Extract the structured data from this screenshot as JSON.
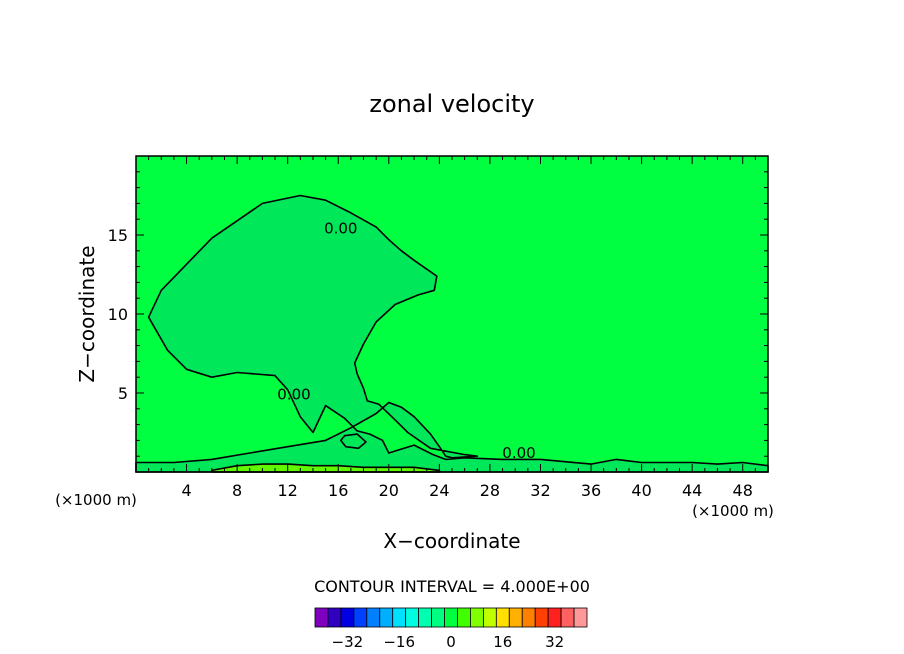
{
  "chart_data": {
    "type": "contour",
    "title": "zonal velocity",
    "xlabel": "X−coordinate",
    "ylabel": "Z−coordinate",
    "x_unit": "(×1000 m)",
    "xlim": [
      0,
      50
    ],
    "ylim": [
      0,
      20
    ],
    "x_ticks": [
      4,
      8,
      12,
      16,
      20,
      24,
      28,
      32,
      36,
      40,
      44,
      48
    ],
    "y_ticks": [
      5,
      10,
      15
    ],
    "background_level": 0,
    "contour_label": "0.00",
    "contour_interval_text": "CONTOUR INTERVAL = 4.000E+00",
    "colorbar": {
      "ticks": [
        "−32",
        "−16",
        "0",
        "16",
        "32"
      ],
      "tick_values": [
        -32,
        -16,
        0,
        16,
        32
      ],
      "min": -40,
      "max": 40,
      "step": 4,
      "colors": [
        "#8000c0",
        "#3000c0",
        "#0000e0",
        "#0040ff",
        "#0080ff",
        "#00b0ff",
        "#00e0ff",
        "#00ffe0",
        "#00ffb0",
        "#00ff80",
        "#00ff40",
        "#40ff00",
        "#80ff00",
        "#c0ff00",
        "#ffe000",
        "#ffb000",
        "#ff8000",
        "#ff4000",
        "#ff2020",
        "#ff6060",
        "#ff9898"
      ]
    },
    "regions": [
      {
        "name": "negative velocity (-4 to 0)",
        "level_color": "#00e85a",
        "value_range": [
          -4,
          0
        ],
        "outline": [
          [
            13,
            17.5
          ],
          [
            10,
            17
          ],
          [
            6,
            14.8
          ],
          [
            2,
            11.5
          ],
          [
            1,
            9.8
          ],
          [
            2.5,
            7.7
          ],
          [
            4,
            6.5
          ],
          [
            6,
            6
          ],
          [
            8,
            6.3
          ],
          [
            11,
            6.1
          ],
          [
            12,
            5.2
          ],
          [
            13,
            3.5
          ],
          [
            14,
            2.5
          ],
          [
            15,
            4.2
          ],
          [
            16.5,
            3.4
          ],
          [
            17.5,
            2.6
          ],
          [
            18.5,
            2.4
          ],
          [
            19.5,
            2
          ],
          [
            20,
            1.2
          ],
          [
            22,
            1.7
          ],
          [
            23.5,
            1.1
          ],
          [
            24.5,
            0.8
          ],
          [
            26,
            0.9
          ],
          [
            29,
            0.8
          ],
          [
            32,
            0.8
          ],
          [
            36,
            0.5
          ],
          [
            38,
            0.8
          ],
          [
            40,
            0.6
          ],
          [
            44,
            0.6
          ],
          [
            46,
            0.5
          ],
          [
            48,
            0.6
          ],
          [
            50,
            0.4
          ],
          [
            50,
            0
          ],
          [
            0,
            0
          ],
          [
            0,
            0.6
          ],
          [
            3,
            0.6
          ],
          [
            6,
            0.8
          ],
          [
            9,
            1.2
          ],
          [
            12,
            1.6
          ],
          [
            15,
            2
          ],
          [
            17,
            2.8
          ],
          [
            19,
            3.7
          ],
          [
            20,
            4.4
          ],
          [
            21,
            4.1
          ],
          [
            22,
            3.5
          ],
          [
            23.3,
            2.4
          ],
          [
            24,
            1.6
          ],
          [
            24.5,
            1
          ],
          [
            25,
            0.9
          ],
          [
            27,
            1
          ],
          [
            26,
            1.1
          ],
          [
            23.3,
            1.5
          ],
          [
            21.5,
            2.5
          ],
          [
            20.5,
            3.3
          ],
          [
            19.2,
            4.3
          ],
          [
            18.3,
            4.5
          ],
          [
            18,
            5.3
          ],
          [
            17.5,
            6.2
          ],
          [
            17.3,
            6.9
          ],
          [
            18,
            8.1
          ],
          [
            19,
            9.5
          ],
          [
            20.5,
            10.6
          ],
          [
            22.3,
            11.2
          ],
          [
            23.6,
            11.5
          ],
          [
            23.8,
            12.4
          ],
          [
            22,
            13.4
          ],
          [
            21,
            14
          ],
          [
            20,
            14.7
          ],
          [
            19,
            15.5
          ],
          [
            17,
            16.4
          ],
          [
            15,
            17.2
          ],
          [
            13,
            17.5
          ]
        ]
      },
      {
        "name": "low-level jet strip",
        "level_color": "#60f800",
        "value_range": [
          0,
          4
        ],
        "outline": [
          [
            6,
            0.1
          ],
          [
            8,
            0.4
          ],
          [
            10,
            0.5
          ],
          [
            12,
            0.5
          ],
          [
            14,
            0.4
          ],
          [
            16,
            0.4
          ],
          [
            18,
            0.3
          ],
          [
            20,
            0.3
          ],
          [
            22,
            0.3
          ],
          [
            24,
            0.1
          ],
          [
            24,
            0
          ],
          [
            6,
            0
          ]
        ]
      },
      {
        "name": "small pocket near (17,2)",
        "level_color": "#00e85a",
        "value_range": [
          -4,
          0
        ],
        "outline": [
          [
            16.2,
            2
          ],
          [
            16.5,
            2.3
          ],
          [
            17.5,
            2.4
          ],
          [
            18.2,
            1.9
          ],
          [
            17.6,
            1.5
          ],
          [
            16.6,
            1.6
          ]
        ]
      }
    ],
    "annotations": [
      {
        "text": "0.00",
        "x": 16.2,
        "y": 15.1
      },
      {
        "text": "0.00",
        "x": 12.5,
        "y": 4.6
      },
      {
        "text": "0.00",
        "x": 30.3,
        "y": 0.9
      }
    ],
    "grid": false,
    "legend": "colorbar-bottom-center"
  }
}
